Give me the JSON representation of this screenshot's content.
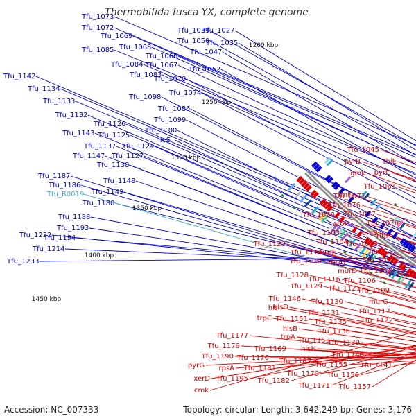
{
  "title": "Thermobifida fusca YX, complete genome",
  "footer": {
    "accession": "Accession: NC_007333",
    "topology": "Topology: circular; Length: 3,642,249 bp; Genes: 3,176"
  },
  "colors": {
    "forward_strand": "#0000cc",
    "reverse_strand": "#dd0000",
    "rna_label": "#44aacc",
    "backbone": "#777777",
    "marker": "#1a8a1a"
  },
  "kbp_ticks": [
    "1200 kbp",
    "1250 kbp",
    "1300 kbp",
    "1350 kbp",
    "1400 kbp",
    "1450 kbp"
  ],
  "blue_labels": [
    "Tfu_1073",
    "Tfu_1072",
    "Tfu_1069",
    "Tfu_1085",
    "Tfu_1068",
    "Tfu_1066",
    "Tfu_1084",
    "Tfu_1067",
    "Tfu_1083",
    "Tfu_1039",
    "Tfu_1050",
    "Tfu_1027",
    "Tfu_1035",
    "Tfu_1047",
    "Tfu_1052",
    "Tfu_1070",
    "Tfu_1074",
    "Tfu_1142",
    "Tfu_1134",
    "Tfu_1133",
    "Tfu_1098",
    "Tfu_1086",
    "Tfu_1132",
    "Tfu_1126",
    "Tfu_1099",
    "Tfu_1143",
    "Tfu_1125",
    "Tfu_1100",
    "Tfu_1137",
    "Tfu_1124",
    "ileS",
    "Tfu_1147",
    "Tfu_1127",
    "Tfu_1138",
    "Tfu_1187",
    "Tfu_1186",
    "Tfu_1148",
    "Tfu_1149",
    "Tfu_1180",
    "Tfu_1188",
    "Tfu_1193",
    "Tfu_1232",
    "Tfu_1194",
    "Tfu_1214",
    "Tfu_1233"
  ],
  "rna_labels": [
    "Tfu_R0019"
  ],
  "red_labels": [
    "Tfu_1045",
    "pyrB",
    "thiE",
    "pyrC",
    "gmk",
    "Tfu_1061",
    "fmt",
    "Tfu_1071",
    "Tfu_1076",
    "Tfu_1090",
    "Tfu_1077",
    "Tfu_1078",
    "aroK",
    "Tfu_1103",
    "aroB",
    "ribH",
    "Tfu_1123",
    "Tfu_1104",
    "Tfu_1093",
    "murE",
    "nusB",
    "Tfu_1114",
    "Tfu_1119",
    "mraY",
    "Tfu_1097",
    "Tfu_1128",
    "murD",
    "Tfu_1101",
    "Tfu_1116",
    "Tfu_1106",
    "Tfu_1129",
    "Tfu_1121",
    "Tfu_1109",
    "Tfu_1146",
    "Tfu_1130",
    "murG",
    "hisI",
    "Tfu_1117",
    "hisD",
    "Tfu_1151",
    "Tfu_1131",
    "trpC",
    "hisB",
    "Tfu_1135",
    "Tfu_1122",
    "Tfu_1136",
    "Tfu_1177",
    "trpA",
    "Tfu_1153",
    "Tfu_1139",
    "Tfu_1179",
    "hisH",
    "Tfu_1169",
    "Tfu_1140",
    "Tfu_1190",
    "Tfu_1176",
    "Tfu_1167",
    "Tfu_1155",
    "Tfu_1141",
    "pyrG",
    "rpsA",
    "Tfu_1181",
    "Tfu_1170",
    "Tfu_1156",
    "xerD",
    "Tfu_1195",
    "Tfu_1182",
    "Tfu_1171",
    "Tfu_1157",
    "cmk"
  ]
}
